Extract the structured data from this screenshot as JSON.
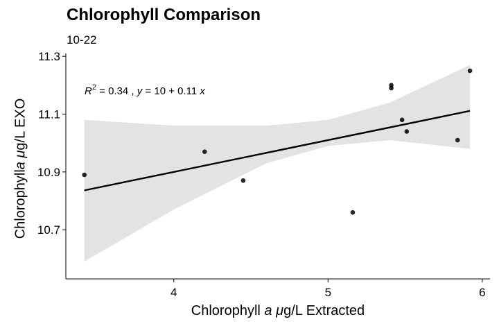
{
  "chart_data": {
    "type": "scatter",
    "title": "Chlorophyll Comparison",
    "subtitle": "10-22",
    "xlabel": "Chlorophyll a μg/L Extracted",
    "ylabel": "Chlorophylla μg/L EXO",
    "xlim": [
      3.3,
      6.05
    ],
    "ylim": [
      10.53,
      11.31
    ],
    "xticks": [
      4,
      5,
      6
    ],
    "yticks": [
      10.7,
      10.9,
      11.1,
      11.3
    ],
    "points": [
      {
        "x": 3.42,
        "y": 10.89
      },
      {
        "x": 4.2,
        "y": 10.97
      },
      {
        "x": 4.45,
        "y": 10.87
      },
      {
        "x": 5.16,
        "y": 10.76
      },
      {
        "x": 5.41,
        "y": 11.19
      },
      {
        "x": 5.41,
        "y": 11.2
      },
      {
        "x": 5.48,
        "y": 11.08
      },
      {
        "x": 5.51,
        "y": 11.04
      },
      {
        "x": 5.84,
        "y": 11.01
      },
      {
        "x": 5.92,
        "y": 11.25
      }
    ],
    "fit": {
      "intercept": 10.46,
      "slope": 0.11
    },
    "confidence_band": {
      "x": [
        3.42,
        4.0,
        4.6,
        5.0,
        5.4,
        5.92
      ],
      "lower": [
        10.59,
        10.77,
        10.93,
        10.99,
        11.01,
        10.98
      ],
      "upper": [
        11.08,
        11.06,
        11.06,
        11.08,
        11.14,
        11.27
      ]
    },
    "annotation": {
      "r2": "0.34",
      "equation": "y = 10 + 0.11 x"
    },
    "grid": false,
    "legend": "none",
    "colors": {
      "points": "#000000",
      "fit_line": "#000000",
      "band": "#e3e3e3"
    }
  }
}
